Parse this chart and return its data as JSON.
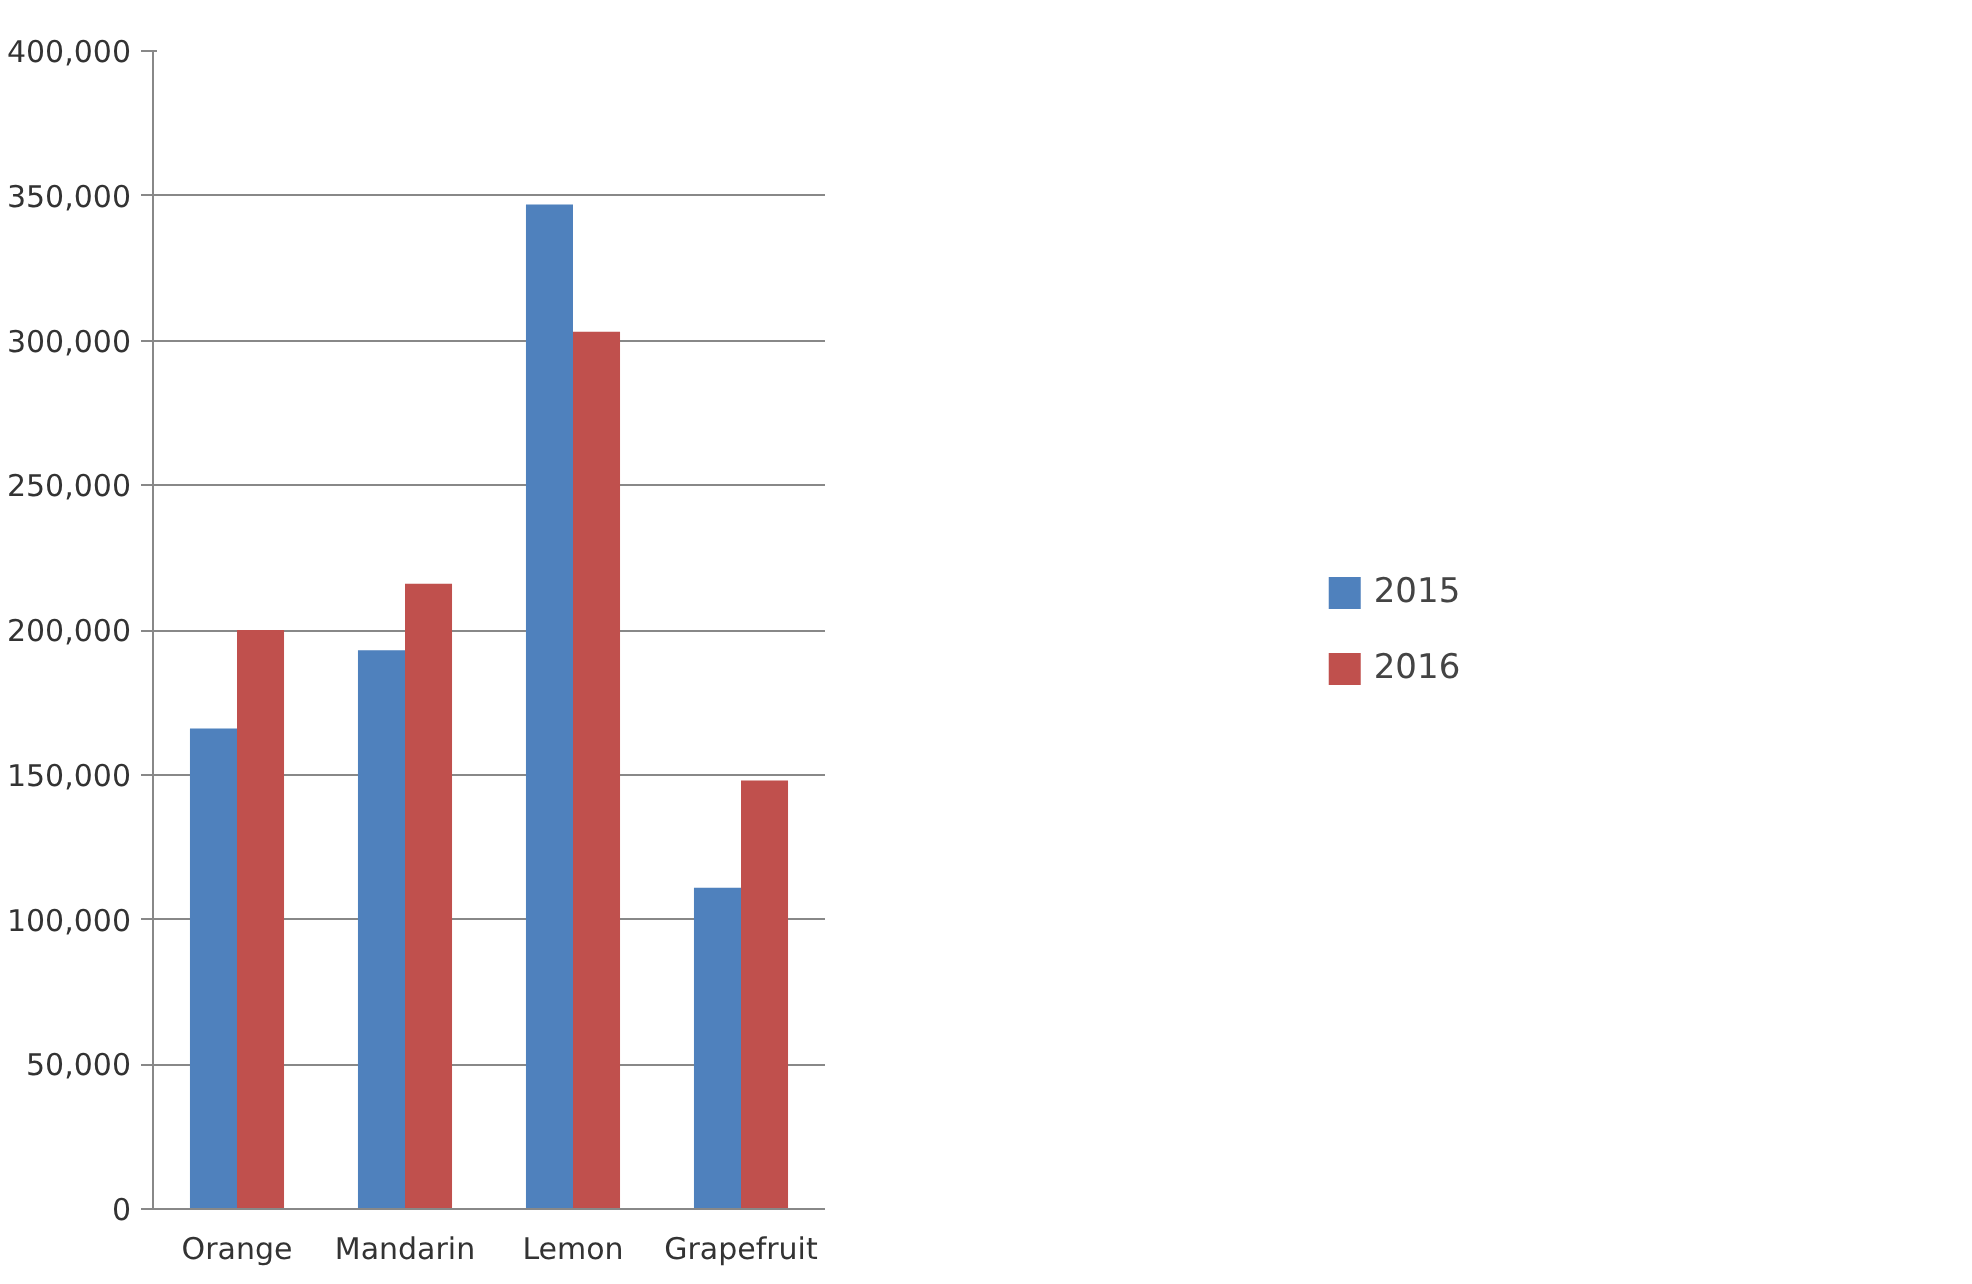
{
  "chart_data": {
    "type": "bar",
    "categories": [
      "Orange",
      "Mandarin",
      "Lemon",
      "Grapefruit"
    ],
    "series": [
      {
        "name": "2015",
        "color": "#4f81bd",
        "values": [
          166000,
          193000,
          347000,
          111000
        ]
      },
      {
        "name": "2016",
        "color": "#c0504d",
        "values": [
          200000,
          216000,
          303000,
          148000
        ]
      }
    ],
    "ylim": [
      0,
      400000
    ],
    "yticks": [
      {
        "value": 0,
        "label": "0"
      },
      {
        "value": 50000,
        "label": "50,000"
      },
      {
        "value": 100000,
        "label": "100,000"
      },
      {
        "value": 150000,
        "label": "150,000"
      },
      {
        "value": 200000,
        "label": "200,000"
      },
      {
        "value": 250000,
        "label": "250,000"
      },
      {
        "value": 300000,
        "label": "300,000"
      },
      {
        "value": 350000,
        "label": "350,000"
      },
      {
        "value": 400000,
        "label": "400,000"
      }
    ],
    "grid": "y",
    "legend": "right"
  }
}
